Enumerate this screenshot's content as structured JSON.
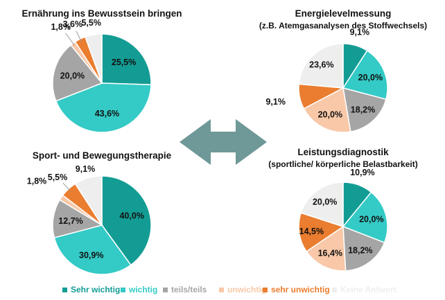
{
  "colors": {
    "Sehr wichtig": "#139c94",
    "wichtig": "#34cac6",
    "teils/teils": "#a5a5a5",
    "unwichtig": "#f8c8a8",
    "sehr unwichtig": "#ea7d2f",
    "Keine Antwort": "#eeeeee",
    "arrow": "#6f9898"
  },
  "legend": [
    {
      "label": "Sehr wichtig",
      "color": "#139c94"
    },
    {
      "label": "wichtig",
      "color": "#34cac6"
    },
    {
      "label": "teils/teils",
      "color": "#a5a5a5"
    },
    {
      "label": "unwichtig",
      "color": "#f8c8a8"
    },
    {
      "label": "sehr unwichtig",
      "color": "#ea7d2f"
    },
    {
      "label": "Keine Antwort",
      "color": "#eeeeee"
    }
  ],
  "chart_data": [
    {
      "type": "pie",
      "title": "Ernährung ins Bewusstsein bringen",
      "subtitle": "",
      "slices": [
        {
          "category": "Sehr wichtig",
          "value": 25.5,
          "label": "25,5%"
        },
        {
          "category": "wichtig",
          "value": 43.6,
          "label": "43,6%"
        },
        {
          "category": "teils/teils",
          "value": 20.0,
          "label": "20,0%"
        },
        {
          "category": "unwichtig",
          "value": 1.8,
          "label": "1,8%"
        },
        {
          "category": "sehr unwichtig",
          "value": 3.6,
          "label": "3,6%"
        },
        {
          "category": "Keine Antwort",
          "value": 5.5,
          "label": "5,5%"
        }
      ]
    },
    {
      "type": "pie",
      "title": "Energielevelmessung",
      "subtitle": "(z.B. Atemgasanalysen des Stoffwechsels)",
      "slices": [
        {
          "category": "Sehr wichtig",
          "value": 9.1,
          "label": "9,1%"
        },
        {
          "category": "wichtig",
          "value": 20.0,
          "label": "20,0%"
        },
        {
          "category": "teils/teils",
          "value": 18.2,
          "label": "18,2%"
        },
        {
          "category": "unwichtig",
          "value": 20.0,
          "label": "20,0%"
        },
        {
          "category": "sehr unwichtig",
          "value": 9.1,
          "label": "9,1%"
        },
        {
          "category": "Keine Antwort",
          "value": 23.6,
          "label": "23,6%"
        }
      ]
    },
    {
      "type": "pie",
      "title": "Sport- und Bewegungstherapie",
      "subtitle": "",
      "slices": [
        {
          "category": "Sehr wichtig",
          "value": 40.0,
          "label": "40,0%"
        },
        {
          "category": "wichtig",
          "value": 30.9,
          "label": "30,9%"
        },
        {
          "category": "teils/teils",
          "value": 12.7,
          "label": "12,7%"
        },
        {
          "category": "unwichtig",
          "value": 1.8,
          "label": "1,8%"
        },
        {
          "category": "sehr unwichtig",
          "value": 5.5,
          "label": "5,5%"
        },
        {
          "category": "Keine Antwort",
          "value": 9.1,
          "label": "9,1%"
        }
      ]
    },
    {
      "type": "pie",
      "title": "Leistungsdiagnostik",
      "subtitle": "(sportliche/ körperliche Belastbarkeit)",
      "slices": [
        {
          "category": "Sehr wichtig",
          "value": 10.9,
          "label": "10,9%"
        },
        {
          "category": "wichtig",
          "value": 20.0,
          "label": "20,0%"
        },
        {
          "category": "teils/teils",
          "value": 18.2,
          "label": "18,2%"
        },
        {
          "category": "unwichtig",
          "value": 16.4,
          "label": "16,4%"
        },
        {
          "category": "sehr unwichtig",
          "value": 14.5,
          "label": "14,5%"
        },
        {
          "category": "Keine Antwort",
          "value": 20.0,
          "label": "20,0%"
        }
      ]
    }
  ]
}
